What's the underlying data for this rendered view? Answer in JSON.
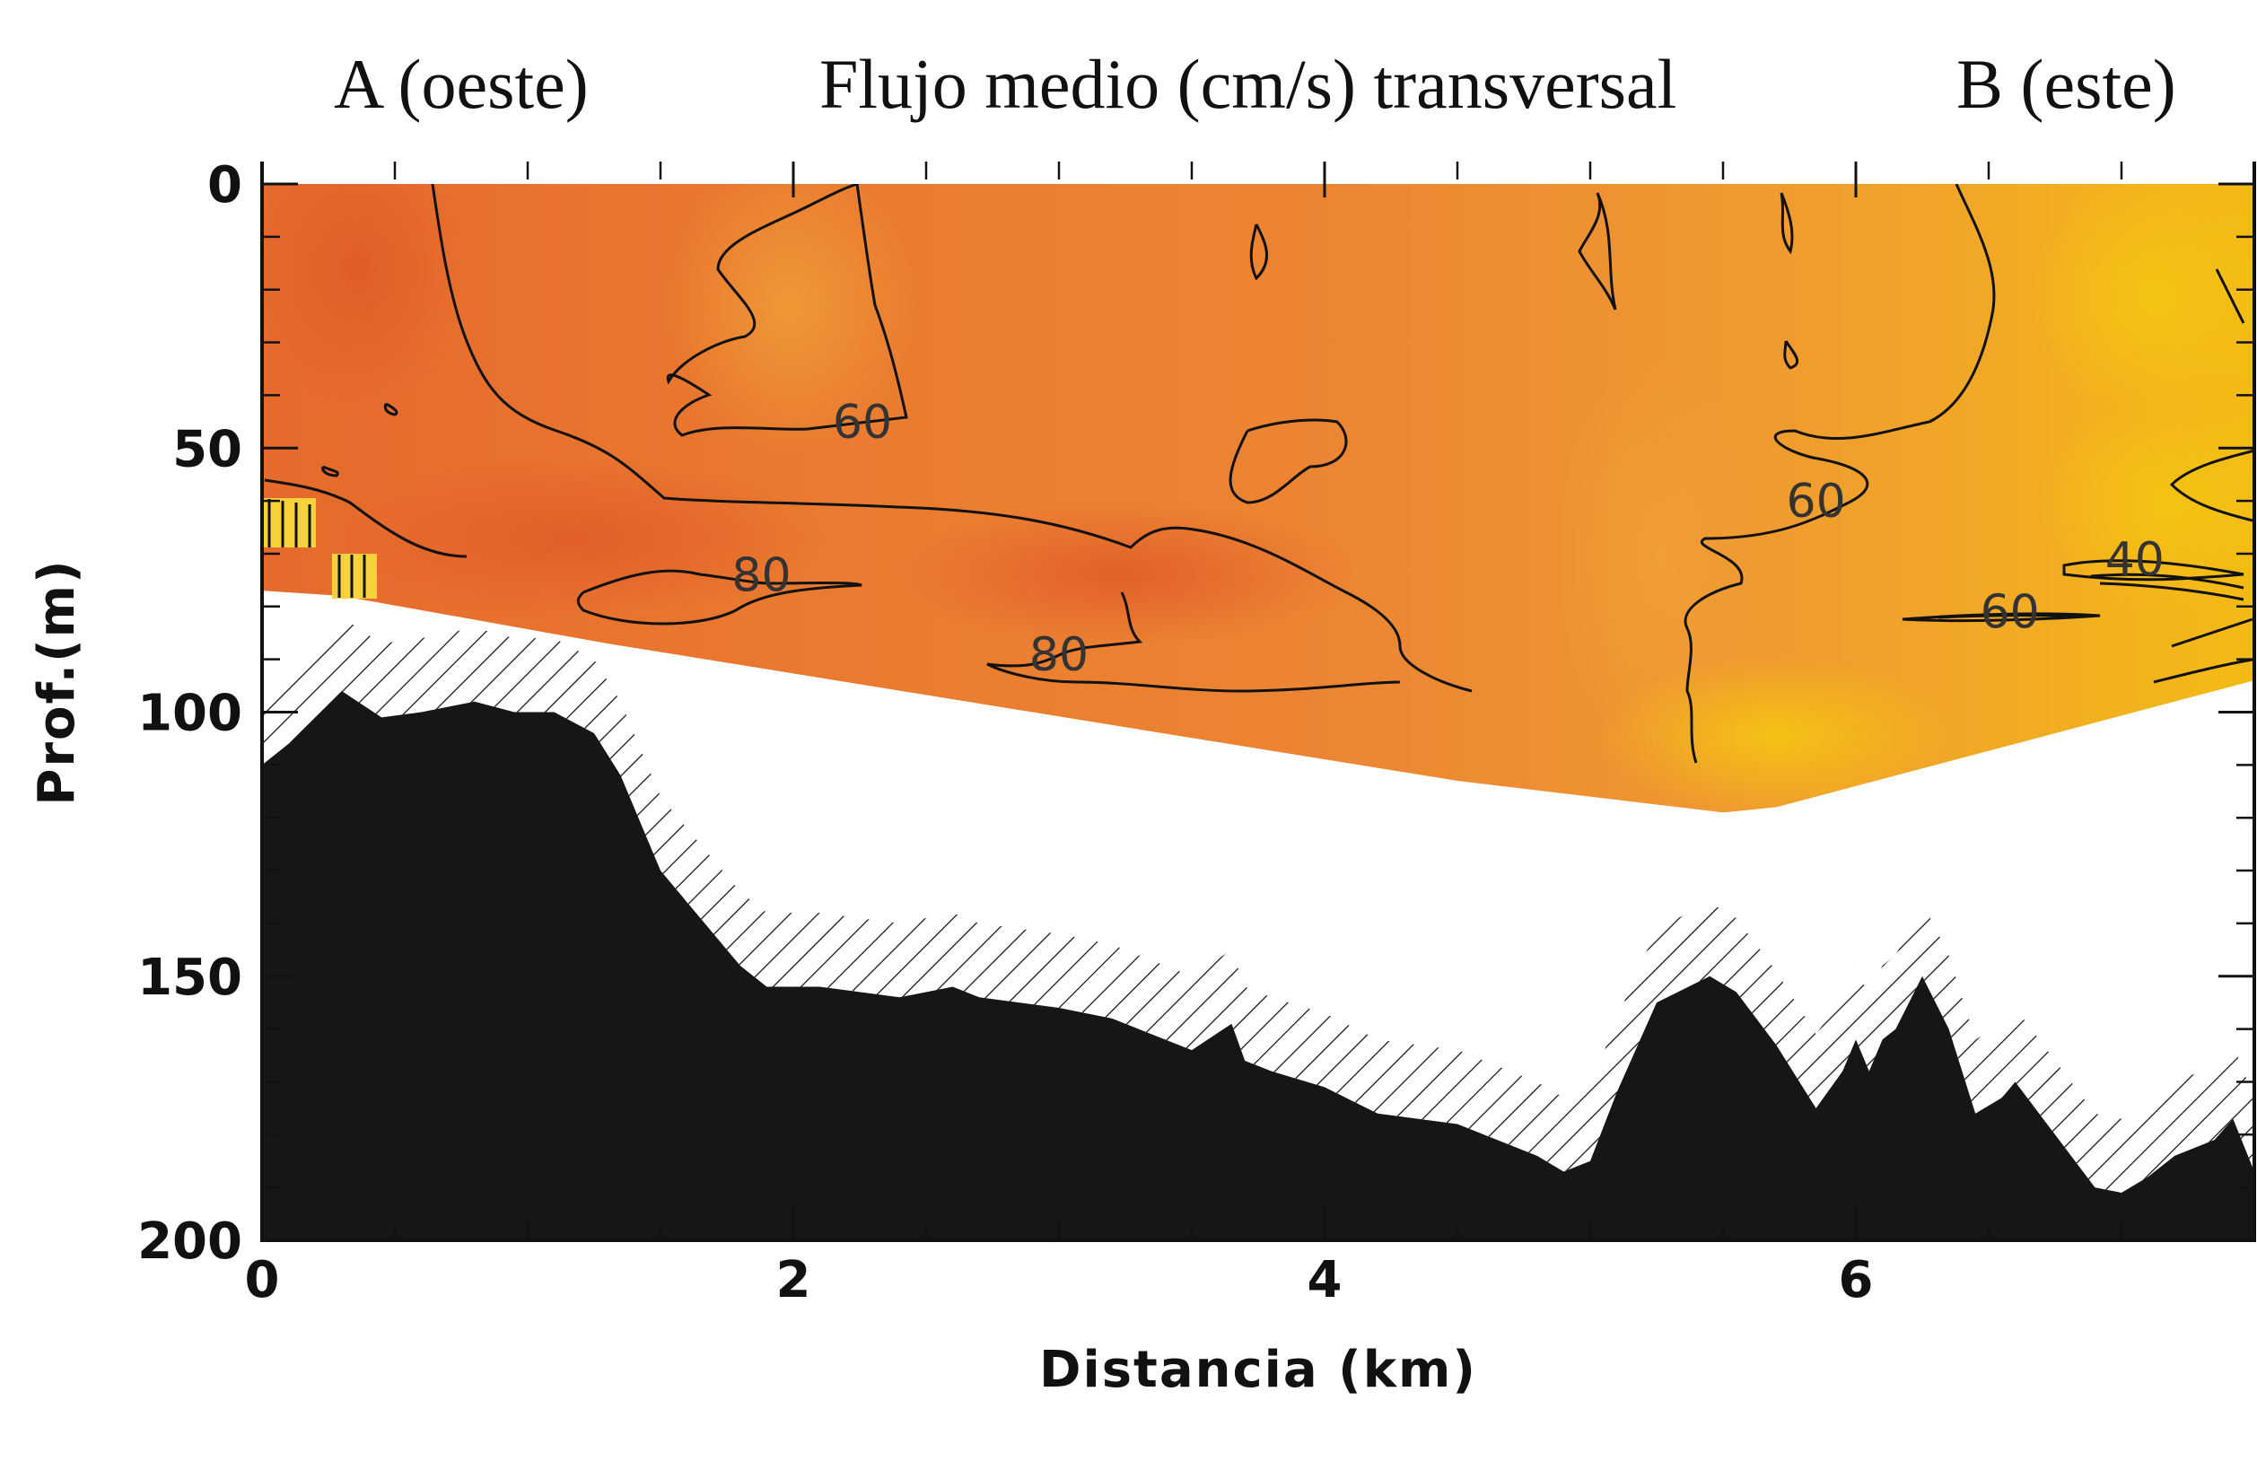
{
  "header": {
    "left_label": "A (oeste)",
    "title": "Flujo medio (cm/s) transversal",
    "right_label": "B (este)"
  },
  "chart_data": {
    "type": "heatmap",
    "title": "Flujo medio (cm/s) transversal",
    "xlabel": "Distancia (km)",
    "ylabel": "Prof.(m)",
    "xlim": [
      0,
      7.5
    ],
    "ylim": [
      200,
      0
    ],
    "xticks": [
      0,
      2,
      4,
      6
    ],
    "yticks": [
      0,
      50,
      100,
      150,
      200
    ],
    "colors": {
      "high_flow": "#e4672c",
      "mid_flow": "#ee8f33",
      "low_flow": "#f2b41c",
      "bathymetry": "#151617"
    },
    "contour_labels": [
      {
        "text": "60",
        "x": 2.26,
        "y": 45
      },
      {
        "text": "60",
        "x": 5.85,
        "y": 60
      },
      {
        "text": "80",
        "x": 1.88,
        "y": 74
      },
      {
        "text": "80",
        "x": 3.0,
        "y": 89
      },
      {
        "text": "40",
        "x": 7.05,
        "y": 71
      },
      {
        "text": "60",
        "x": 6.58,
        "y": 81
      }
    ],
    "data_region_bottom": {
      "x": [
        0,
        0.3,
        1.3,
        4.5,
        5.5,
        5.7,
        7.5
      ],
      "depth": [
        77,
        78,
        87,
        113,
        119,
        118,
        94
      ]
    },
    "bathymetry": {
      "x": [
        0,
        0.1,
        0.3,
        0.45,
        0.6,
        0.8,
        0.95,
        1.1,
        1.25,
        1.35,
        1.5,
        1.8,
        1.9,
        2.1,
        2.4,
        2.6,
        2.7,
        3.0,
        3.2,
        3.5,
        3.65,
        3.7,
        3.8,
        4.0,
        4.2,
        4.5,
        4.8,
        4.9,
        5.0,
        5.1,
        5.25,
        5.45,
        5.55,
        5.7,
        5.85,
        5.95,
        6.0,
        6.05,
        6.1,
        6.15,
        6.25,
        6.35,
        6.45,
        6.55,
        6.6,
        6.75,
        6.9,
        7.0,
        7.1,
        7.2,
        7.35,
        7.42,
        7.5
      ],
      "depth": [
        110,
        106,
        96,
        101,
        100,
        98,
        100,
        100,
        104,
        112,
        130,
        148,
        152,
        152,
        154,
        152,
        154,
        156,
        158,
        164,
        159,
        166,
        168,
        171,
        176,
        178,
        184,
        187,
        185,
        172,
        155,
        150,
        153,
        163,
        175,
        168,
        162,
        168,
        162,
        160,
        150,
        160,
        176,
        173,
        170,
        180,
        190,
        191,
        188,
        184,
        181,
        177,
        187
      ]
    }
  },
  "axes": {
    "xlabel": "Distancia (km)",
    "ylabel": "Prof.(m)",
    "xtick_labels": [
      "0",
      "2",
      "4",
      "6"
    ],
    "ytick_labels": [
      "0",
      "50",
      "100",
      "150",
      "200"
    ]
  }
}
